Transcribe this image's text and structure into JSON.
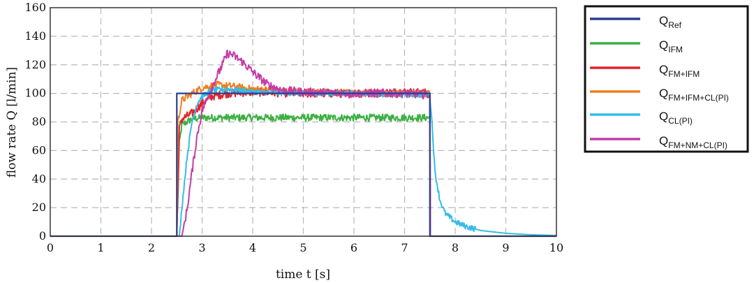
{
  "chart_data": {
    "type": "line",
    "xlabel": "time t [s]",
    "ylabel": "flow rate Q [l/min]",
    "xlim": [
      0,
      10
    ],
    "ylim": [
      0,
      160
    ],
    "xticks": [
      "0",
      "1",
      "2",
      "3",
      "4",
      "5",
      "6",
      "7",
      "8",
      "9",
      "10"
    ],
    "yticks": [
      "0",
      "20",
      "40",
      "60",
      "80",
      "100",
      "120",
      "140",
      "160"
    ],
    "grid": true,
    "legend_position": "right",
    "series": [
      {
        "name": "Q",
        "sub": "Ref",
        "color": "#2b3f8f",
        "x": [
          0,
          2.5,
          2.5,
          7.5,
          7.5,
          10
        ],
        "y": [
          0,
          0,
          100,
          100,
          0,
          0
        ]
      },
      {
        "name": "Q",
        "sub": "IFM",
        "color": "#3cb043",
        "x": [
          0,
          2.5,
          2.55,
          2.6,
          2.8,
          3.0,
          3.5,
          4.0,
          5.0,
          6.0,
          7.0,
          7.5,
          7.51,
          10
        ],
        "y": [
          0,
          0,
          65,
          78,
          82,
          83,
          83,
          83,
          83,
          83,
          83,
          83,
          0,
          0
        ],
        "noise": 2.5
      },
      {
        "name": "Q",
        "sub": "FM+IFM",
        "color": "#e0262b",
        "x": [
          0,
          2.5,
          2.55,
          2.6,
          2.8,
          3.0,
          3.2,
          3.5,
          4.0,
          5.0,
          6.0,
          7.0,
          7.5,
          7.51,
          10
        ],
        "y": [
          0,
          0,
          75,
          82,
          86,
          93,
          98,
          100,
          101,
          100,
          100,
          101,
          100,
          0,
          0
        ],
        "noise": 3
      },
      {
        "name": "Q",
        "sub": "FM+IFM+CL(PI)",
        "color": "#f07f1e",
        "x": [
          0,
          2.5,
          2.52,
          2.6,
          2.8,
          3.0,
          3.3,
          3.6,
          4.0,
          5.0,
          6.0,
          7.0,
          7.5,
          7.51,
          10
        ],
        "y": [
          0,
          0,
          80,
          95,
          100,
          104,
          106,
          105,
          103,
          101,
          100,
          100,
          100,
          0,
          0
        ],
        "noise": 2.5
      },
      {
        "name": "Q",
        "sub": "CL(PI)",
        "color": "#35bce6",
        "x": [
          0,
          2.55,
          2.6,
          2.7,
          2.8,
          2.9,
          3.0,
          3.2,
          3.5,
          4.0,
          5.0,
          6.0,
          7.0,
          7.5,
          7.55,
          7.6,
          7.7,
          7.8,
          8.0,
          8.2,
          8.5,
          9.0,
          9.5,
          10.0
        ],
        "y": [
          0,
          0,
          20,
          55,
          80,
          93,
          98,
          102,
          103,
          101,
          100,
          100,
          99,
          99,
          75,
          45,
          25,
          16,
          10,
          7,
          4,
          2,
          1,
          0.5
        ],
        "noise": 2
      },
      {
        "name": "Q",
        "sub": "FM+NM+CL(PI)",
        "color": "#c43ba8",
        "x": [
          0,
          2.6,
          2.7,
          2.8,
          2.9,
          3.0,
          3.2,
          3.4,
          3.5,
          3.6,
          3.8,
          4.0,
          4.3,
          4.6,
          5.0,
          6.0,
          7.0,
          7.5,
          7.51,
          10
        ],
        "y": [
          0,
          0,
          18,
          45,
          70,
          88,
          105,
          120,
          128,
          127,
          122,
          115,
          106,
          102,
          101,
          100,
          100,
          99,
          0,
          0
        ],
        "noise": 3
      }
    ]
  }
}
